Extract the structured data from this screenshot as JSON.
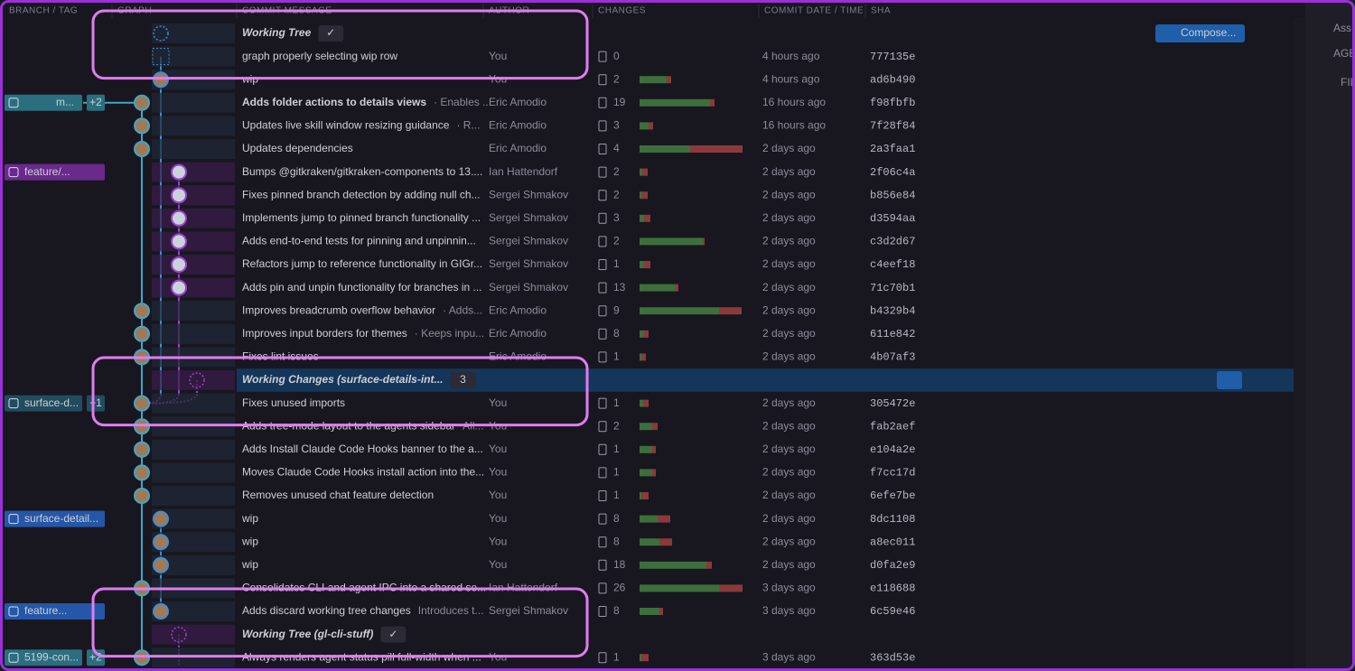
{
  "header": {
    "columns": [
      "BRANCH / TAG",
      "GRAPH",
      "COMMIT MESSAGE",
      "AUTHOR",
      "CHANGES",
      "COMMIT DATE / TIME",
      "SHA"
    ]
  },
  "toolbar": {
    "compose": "Compose..."
  },
  "sidebar": [
    "Ass",
    "AGE",
    "FIL"
  ],
  "rows": [
    {
      "message": "Working Tree",
      "badge": "✓",
      "wip": true
    },
    {
      "message": "graph properly selecting wip row",
      "author": "You",
      "changes": 0,
      "date": "4 hours ago",
      "sha": "777135e"
    },
    {
      "message": "wip",
      "author": "You",
      "changes": 2,
      "date": "4 hours ago",
      "sha": "ad6b490",
      "adds": 30,
      "dels": 5
    },
    {
      "message": "Adds folder actions to details views",
      "description": "· Enables ...",
      "author": "Eric Amodio",
      "changes": 19,
      "date": "16 hours ago",
      "sha": "f98fbfb",
      "adds": 78,
      "dels": 5,
      "bold": true,
      "branch": "m...",
      "branch_extra": "+2",
      "branch_color": "#2a6f80"
    },
    {
      "message": "Updates live skill window resizing guidance",
      "description": "· R...",
      "author": "Eric Amodio",
      "changes": 3,
      "date": "16 hours ago",
      "sha": "7f28f84",
      "adds": 10,
      "dels": 5
    },
    {
      "message": "Updates dependencies",
      "author": "Eric Amodio",
      "changes": 4,
      "date": "2 days ago",
      "sha": "2a3faa1",
      "adds": 56,
      "dels": 58
    },
    {
      "message": "Bumps @gitkraken/gitkraken-components to 13....",
      "author": "Ian Hattendorf",
      "changes": 2,
      "date": "2 days ago",
      "sha": "2f06c4a",
      "adds": 3,
      "dels": 6,
      "branch": "feature/...",
      "branch_color": "#6a2a8c"
    },
    {
      "message": "Fixes pinned branch detection by adding null ch...",
      "author": "Sergei Shmakov",
      "changes": 2,
      "date": "2 days ago",
      "sha": "b856e84",
      "adds": 2,
      "dels": 7
    },
    {
      "message": "Implements jump to pinned branch functionality ...",
      "author": "Sergei Shmakov",
      "changes": 3,
      "date": "2 days ago",
      "sha": "d3594aa",
      "adds": 5,
      "dels": 7
    },
    {
      "message": "Adds end-to-end tests for pinning and unpinnin...",
      "author": "Sergei Shmakov",
      "changes": 2,
      "date": "2 days ago",
      "sha": "c3d2d67",
      "adds": 70,
      "dels": 2
    },
    {
      "message": "Refactors jump to reference functionality in GIGr...",
      "author": "Sergei Shmakov",
      "changes": 1,
      "date": "2 days ago",
      "sha": "c4eef18",
      "adds": 5,
      "dels": 7
    },
    {
      "message": "Adds pin and unpin functionality for branches in ...",
      "author": "Sergei Shmakov",
      "changes": 13,
      "date": "2 days ago",
      "sha": "71c70b1",
      "adds": 40,
      "dels": 3
    },
    {
      "message": "Improves breadcrumb overflow behavior",
      "description": "· Adds...",
      "author": "Eric Amodio",
      "changes": 9,
      "date": "2 days ago",
      "sha": "b4329b4",
      "adds": 88,
      "dels": 25
    },
    {
      "message": "Improves input borders for themes",
      "description": "· Keeps inpu...",
      "author": "Eric Amodio",
      "changes": 8,
      "date": "2 days ago",
      "sha": "611e842",
      "adds": 5,
      "dels": 5
    },
    {
      "message": "Fixes lint issues",
      "author": "Eric Amodio",
      "changes": 1,
      "date": "2 days ago",
      "sha": "4b07af3",
      "adds": 2,
      "dels": 5
    },
    {
      "message": "Working Changes (surface-details-int...",
      "badge": "3",
      "wip": true,
      "selected": true
    },
    {
      "message": "Fixes unused imports",
      "author": "You",
      "changes": 1,
      "date": "2 days ago",
      "sha": "305472e",
      "adds": 4,
      "dels": 6,
      "branch": "surface-d...",
      "branch_extra": "+1",
      "branch_color": "#214c5e"
    },
    {
      "message": "Adds tree-mode layout to the agents sidebar",
      "description": "All...",
      "author": "You",
      "changes": 2,
      "date": "2 days ago",
      "sha": "fab2aef",
      "adds": 14,
      "dels": 6
    },
    {
      "message": "Adds Install Claude Code Hooks banner to the a...",
      "author": "You",
      "changes": 1,
      "date": "2 days ago",
      "sha": "e104a2e",
      "adds": 14,
      "dels": 4
    },
    {
      "message": "Moves Claude Code Hooks install action into the...",
      "author": "You",
      "changes": 1,
      "date": "2 days ago",
      "sha": "f7cc17d",
      "adds": 14,
      "dels": 4
    },
    {
      "message": "Removes unused chat feature detection",
      "author": "You",
      "changes": 1,
      "date": "2 days ago",
      "sha": "6efe7be",
      "adds": 2,
      "dels": 8
    },
    {
      "message": "wip",
      "author": "You",
      "changes": 8,
      "date": "2 days ago",
      "sha": "8dc1108",
      "adds": 20,
      "dels": 14,
      "branch": "surface-detail...",
      "branch_color": "#2557a8"
    },
    {
      "message": "wip",
      "author": "You",
      "changes": 8,
      "date": "2 days ago",
      "sha": "a8ec011",
      "adds": 22,
      "dels": 14
    },
    {
      "message": "wip",
      "author": "You",
      "changes": 18,
      "date": "2 days ago",
      "sha": "d0fa2e9",
      "adds": 74,
      "dels": 6
    },
    {
      "message": "Consolidates CLI and agent IPC into a shared se...",
      "author": "Ian Hattendorf",
      "changes": 26,
      "date": "3 days ago",
      "sha": "e118688",
      "adds": 88,
      "dels": 26
    },
    {
      "message": "Adds discard working tree changes",
      "description": "Introduces t...",
      "author": "Sergei Shmakov",
      "changes": 8,
      "date": "3 days ago",
      "sha": "6c59e46",
      "adds": 22,
      "dels": 4,
      "branch": "feature...",
      "branch_color": "#2557a8"
    },
    {
      "message": "Working Tree (gl-cli-stuff)",
      "badge": "✓",
      "wip": true
    },
    {
      "message": "Always renders agent status pill full-width when ...",
      "author": "You",
      "changes": 1,
      "date": "3 days ago",
      "sha": "363d53e",
      "adds": 2,
      "dels": 8,
      "branch": "5199-con...",
      "branch_extra": "+2",
      "branch_color": "#2a6f80"
    }
  ]
}
